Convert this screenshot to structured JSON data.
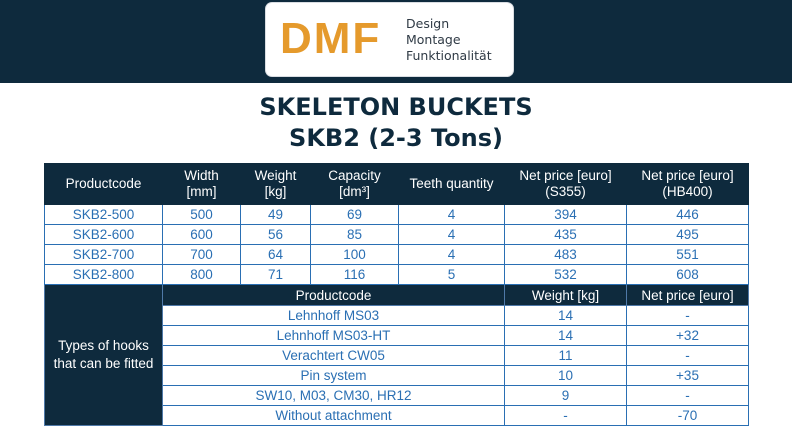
{
  "logo": {
    "mark": "DMF",
    "tagline": [
      "Design",
      "Montage",
      "Funktionalität"
    ]
  },
  "title": "SKELETON BUCKETS",
  "subtitle": "SKB2 (2-3 Tons)",
  "products": {
    "headers": [
      "Productcode",
      "Width\n[mm]",
      "Weight\n[kg]",
      "Capacity\n[dm³]",
      "Teeth quantity",
      "Net price [euro]\n(S355)",
      "Net price [euro]\n(HB400)"
    ],
    "rows": [
      [
        "SKB2-500",
        "500",
        "49",
        "69",
        "4",
        "394",
        "446"
      ],
      [
        "SKB2-600",
        "600",
        "56",
        "85",
        "4",
        "435",
        "495"
      ],
      [
        "SKB2-700",
        "700",
        "64",
        "100",
        "4",
        "483",
        "551"
      ],
      [
        "SKB2-800",
        "800",
        "71",
        "116",
        "5",
        "532",
        "608"
      ]
    ]
  },
  "hooks": {
    "side_label": "Types of hooks that can be fitted",
    "headers": [
      "Productcode",
      "Weight [kg]",
      "Net price [euro]"
    ],
    "rows": [
      [
        "Lehnhoff MS03",
        "14",
        "-"
      ],
      [
        "Lehnhoff MS03-HT",
        "14",
        "+32"
      ],
      [
        "Verachtert CW05",
        "11",
        "-"
      ],
      [
        "Pin system",
        "10",
        "+35"
      ],
      [
        "SW10, M03, CM30, HR12",
        "9",
        "-"
      ],
      [
        "Without attachment",
        "-",
        "-70"
      ]
    ]
  }
}
